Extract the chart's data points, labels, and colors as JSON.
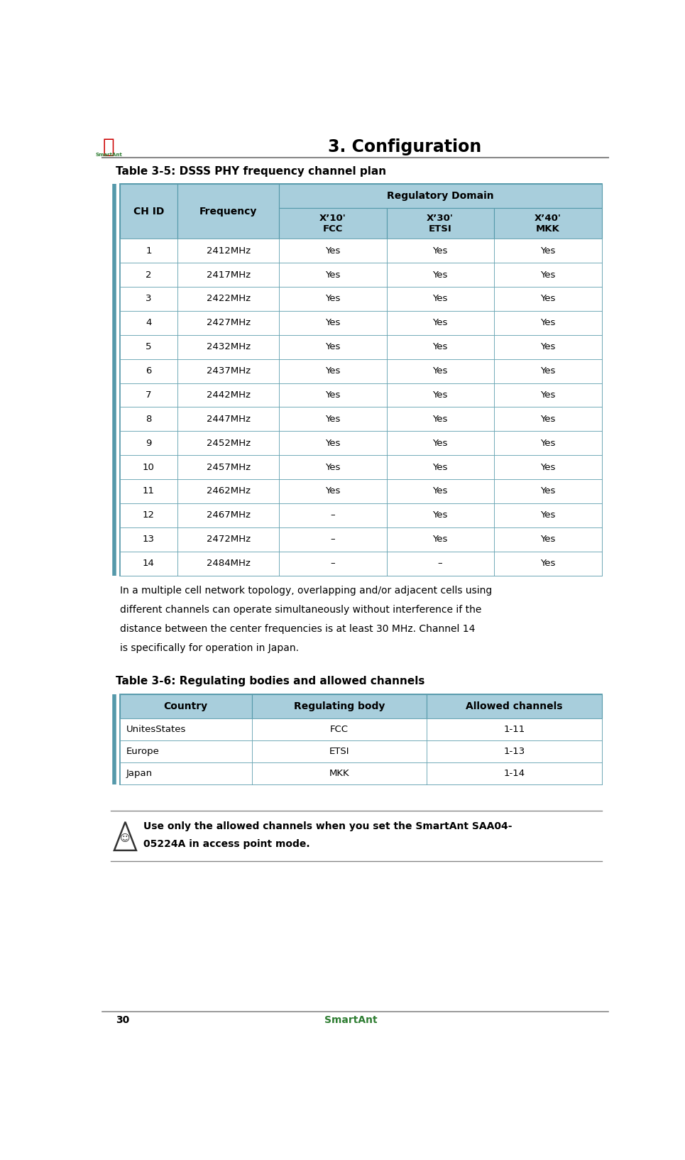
{
  "page_title": "3. Configuration",
  "page_number": "30",
  "page_footer": "SmartAnt",
  "table1_title": "Table 3-5: DSSS PHY frequency channel plan",
  "table1_header_row1": "Regulatory Domain",
  "table1_col_headers": [
    "CH ID",
    "Frequency",
    "X’10'\nFCC",
    "X’30'\nETSI",
    "X’40'\nMKK"
  ],
  "table1_rows": [
    [
      "1",
      "2412MHz",
      "Yes",
      "Yes",
      "Yes"
    ],
    [
      "2",
      "2417MHz",
      "Yes",
      "Yes",
      "Yes"
    ],
    [
      "3",
      "2422MHz",
      "Yes",
      "Yes",
      "Yes"
    ],
    [
      "4",
      "2427MHz",
      "Yes",
      "Yes",
      "Yes"
    ],
    [
      "5",
      "2432MHz",
      "Yes",
      "Yes",
      "Yes"
    ],
    [
      "6",
      "2437MHz",
      "Yes",
      "Yes",
      "Yes"
    ],
    [
      "7",
      "2442MHz",
      "Yes",
      "Yes",
      "Yes"
    ],
    [
      "8",
      "2447MHz",
      "Yes",
      "Yes",
      "Yes"
    ],
    [
      "9",
      "2452MHz",
      "Yes",
      "Yes",
      "Yes"
    ],
    [
      "10",
      "2457MHz",
      "Yes",
      "Yes",
      "Yes"
    ],
    [
      "11",
      "2462MHz",
      "Yes",
      "Yes",
      "Yes"
    ],
    [
      "12",
      "2467MHz",
      "–",
      "Yes",
      "Yes"
    ],
    [
      "13",
      "2472MHz",
      "–",
      "Yes",
      "Yes"
    ],
    [
      "14",
      "2484MHz",
      "–",
      "–",
      "Yes"
    ]
  ],
  "table1_header_bg": "#A8CEDC",
  "table1_border_color": "#5599AA",
  "paragraph_text": "In a multiple cell network topology, overlapping and/or adjacent cells using\ndifferent channels can operate simultaneously without interference if the\ndistance between the center frequencies is at least 30 MHz. Channel 14\nis specifically for operation in Japan.",
  "table2_title": "Table 3-6: Regulating bodies and allowed channels",
  "table2_header": [
    "Country",
    "Regulating body",
    "Allowed channels"
  ],
  "table2_rows": [
    [
      "UnitesStates",
      "FCC",
      "1-11"
    ],
    [
      "Europe",
      "ETSI",
      "1-13"
    ],
    [
      "Japan",
      "MKK",
      "1-14"
    ]
  ],
  "table2_header_bg": "#A8CEDC",
  "table2_border_color": "#5599AA",
  "note_text": "Use only the allowed channels when you set the SmartAnt SAA04-\n05224A in access point mode.",
  "header_line_color": "#888888",
  "footer_line_color": "#888888",
  "page_num_color": "#000000",
  "footer_text_color": "#2E7D32",
  "title_color": "#000000",
  "body_text_color": "#000000",
  "left_bar_color": "#5599AA",
  "bg_color": "#FFFFFF"
}
